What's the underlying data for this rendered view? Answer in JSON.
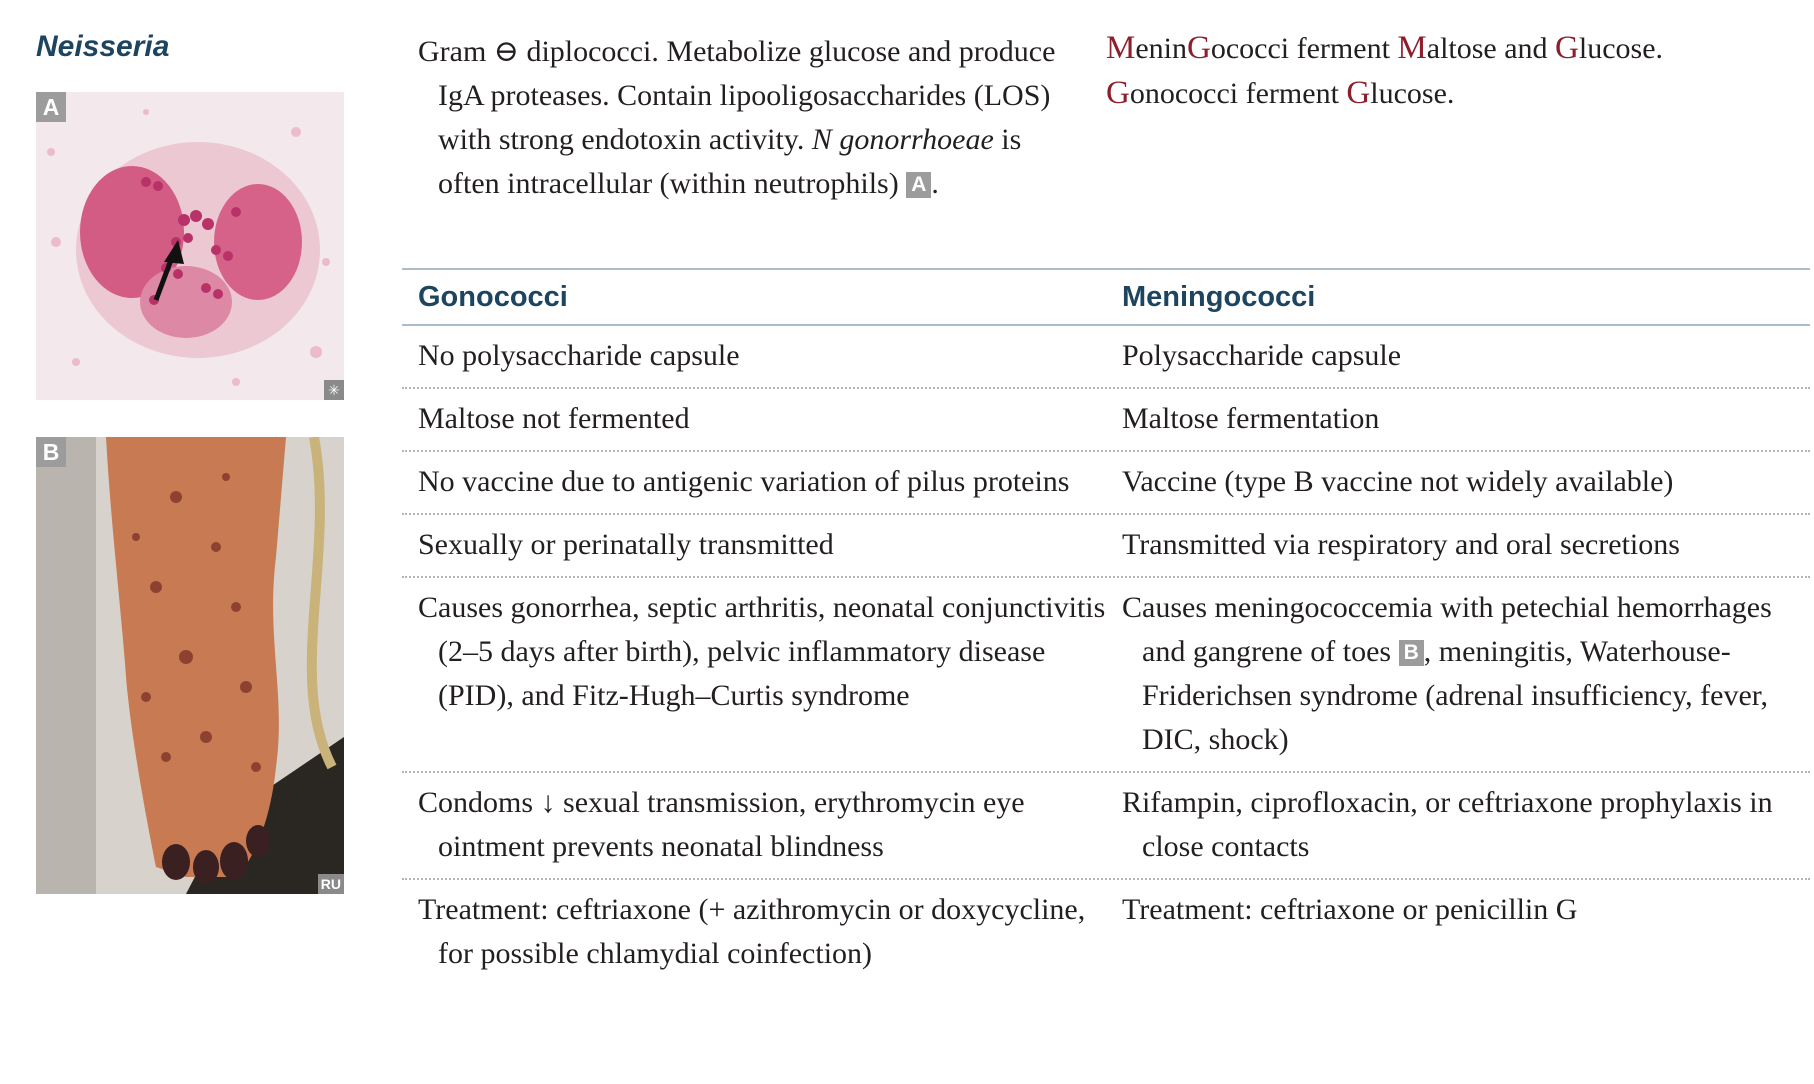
{
  "heading": "Neisseria",
  "images": {
    "a": {
      "label": "A",
      "corner_mark": "✳"
    },
    "b": {
      "label": "B",
      "corner_mark": "RU"
    }
  },
  "intro": {
    "text": "Gram ⊖ diplococci. Metabolize glucose and produce IgA proteases. Contain lipooligosaccharides (LOS) with strong endotoxin activity. ",
    "italic": "N gonorrhoeae",
    "text2": " is often intracellular (within neutrophils) ",
    "ref": "A",
    "end": "."
  },
  "mnemonic": {
    "line1": [
      {
        "t": "M",
        "hl": true
      },
      {
        "t": "enin",
        "hl": false
      },
      {
        "t": "G",
        "hl": true
      },
      {
        "t": "ococci ferment ",
        "hl": false
      },
      {
        "t": "M",
        "hl": true
      },
      {
        "t": "altose and ",
        "hl": false
      },
      {
        "t": "G",
        "hl": true
      },
      {
        "t": "lucose.",
        "hl": false
      }
    ],
    "line2": [
      {
        "t": "G",
        "hl": true
      },
      {
        "t": "onococci ferment ",
        "hl": false
      },
      {
        "t": "G",
        "hl": true
      },
      {
        "t": "lucose.",
        "hl": false
      }
    ]
  },
  "table": {
    "headers": [
      "Gonococci",
      "Meningococci"
    ],
    "rows": [
      [
        "No polysaccharide capsule",
        "Polysaccharide capsule"
      ],
      [
        "Maltose not fermented",
        "Maltose fermentation"
      ],
      [
        "No vaccine due to antigenic variation of pilus proteins",
        "Vaccine (type B vaccine not widely available)"
      ],
      [
        "Sexually or perinatally transmitted",
        "Transmitted via respiratory and oral secretions"
      ],
      [
        "Causes gonorrhea, septic arthritis, neonatal conjunctivitis (2–5 days after birth), pelvic inflammatory disease (PID), and Fitz-Hugh–Curtis syndrome",
        "Causes meningococcemia with petechial hemorrhages and gangrene of toes"
      ],
      [
        "Condoms ↓ sexual transmission, erythromycin eye ointment prevents neonatal blindness",
        "Rifampin, ciprofloxacin, or ceftriaxone prophylaxis in close contacts"
      ],
      [
        "Treatment: ceftriaxone (+ azithromycin or doxycycline, for possible chlamydial coinfection)",
        "Treatment: ceftriaxone or penicillin G"
      ]
    ],
    "row5_ref": "B",
    "row5_tail": ", meningitis, Waterhouse-Friderichsen syndrome (adrenal insufficiency, fever, DIC, shock)"
  },
  "colors": {
    "heading": "#1d4560",
    "highlight": "#8d1f2c",
    "badge": "#9c9c9c"
  }
}
